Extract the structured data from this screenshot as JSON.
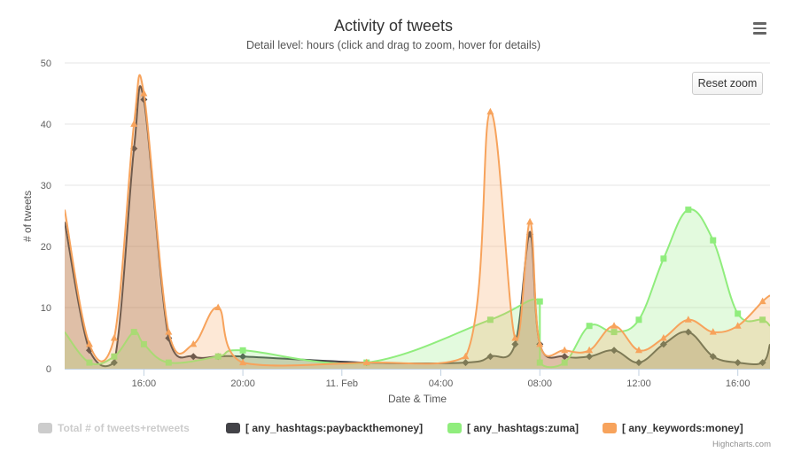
{
  "chart_data": {
    "type": "area",
    "title": "Activity of tweets",
    "subtitle": "Detail level: hours (click and drag to zoom, hover for details)",
    "xlabel": "Date & Time",
    "ylabel": "# of tweets",
    "ylim": [
      0,
      50
    ],
    "yticks": [
      0,
      10,
      20,
      30,
      40,
      50
    ],
    "xticks": [
      {
        "x": 3,
        "label": "16:00"
      },
      {
        "x": 7,
        "label": "20:00"
      },
      {
        "x": 11,
        "label": "11. Feb"
      },
      {
        "x": 15,
        "label": "04:00"
      },
      {
        "x": 19,
        "label": "08:00"
      },
      {
        "x": 23,
        "label": "12:00"
      },
      {
        "x": 27,
        "label": "16:00"
      }
    ],
    "xlim": [
      -0.2,
      28.3
    ],
    "grid": true,
    "legend_position": "bottom",
    "series": [
      {
        "name": "Total # of tweets+retweets",
        "visible": false,
        "color": "#cccccc",
        "points": []
      },
      {
        "name": "[ any_hashtags:paybackthemoney]",
        "visible": true,
        "color": "#434348",
        "fill": "rgba(121,75,46,0.30)",
        "marker": "diamond",
        "points": [
          [
            -0.2,
            24
          ],
          [
            0.8,
            3
          ],
          [
            1.8,
            1
          ],
          [
            2.6,
            36
          ],
          [
            3,
            44
          ],
          [
            4,
            5
          ],
          [
            5,
            2
          ],
          [
            6,
            2
          ],
          [
            7,
            2
          ],
          [
            12,
            1
          ],
          [
            16,
            1
          ],
          [
            17,
            2
          ],
          [
            18,
            4
          ],
          [
            18.6,
            22
          ],
          [
            19,
            4
          ],
          [
            20,
            2
          ],
          [
            21,
            2
          ],
          [
            22,
            3
          ],
          [
            23,
            1
          ],
          [
            24,
            4
          ],
          [
            25,
            6
          ],
          [
            26,
            2
          ],
          [
            27,
            1
          ],
          [
            28,
            1
          ],
          [
            28.3,
            4
          ]
        ]
      },
      {
        "name": "[ any_hashtags:zuma]",
        "visible": true,
        "color": "#90ed7d",
        "fill": "rgba(144,237,125,0.25)",
        "marker": "square",
        "points": [
          [
            -0.2,
            6
          ],
          [
            0.8,
            1
          ],
          [
            1.8,
            2
          ],
          [
            2.6,
            6
          ],
          [
            3,
            4
          ],
          [
            4,
            1
          ],
          [
            6,
            2
          ],
          [
            7,
            3
          ],
          [
            12,
            1
          ],
          [
            17,
            8
          ],
          [
            19,
            11
          ],
          [
            19,
            1
          ],
          [
            20,
            1
          ],
          [
            21,
            7
          ],
          [
            22,
            6
          ],
          [
            23,
            8
          ],
          [
            24,
            18
          ],
          [
            25,
            26
          ],
          [
            26,
            21
          ],
          [
            27,
            9
          ],
          [
            28,
            8
          ],
          [
            28.3,
            7
          ]
        ]
      },
      {
        "name": "[ any_keywords:money]",
        "visible": true,
        "color": "#f7a35c",
        "fill": "rgba(247,163,92,0.25)",
        "marker": "triangle",
        "points": [
          [
            -0.2,
            26
          ],
          [
            0.8,
            4
          ],
          [
            1.8,
            5
          ],
          [
            2.6,
            40
          ],
          [
            3,
            45
          ],
          [
            4,
            6
          ],
          [
            5,
            4
          ],
          [
            6,
            10
          ],
          [
            7,
            1
          ],
          [
            12,
            1
          ],
          [
            16,
            2
          ],
          [
            17,
            42
          ],
          [
            18,
            5
          ],
          [
            18.6,
            24
          ],
          [
            19,
            4
          ],
          [
            20,
            3
          ],
          [
            21,
            3
          ],
          [
            22,
            7
          ],
          [
            23,
            3
          ],
          [
            24,
            5
          ],
          [
            25,
            8
          ],
          [
            26,
            6
          ],
          [
            27,
            7
          ],
          [
            28,
            11
          ],
          [
            28.3,
            12
          ]
        ]
      }
    ]
  },
  "ui": {
    "reset_zoom_label": "Reset zoom",
    "credits": "Highcharts.com",
    "menu_icon": "hamburger-menu-icon"
  }
}
